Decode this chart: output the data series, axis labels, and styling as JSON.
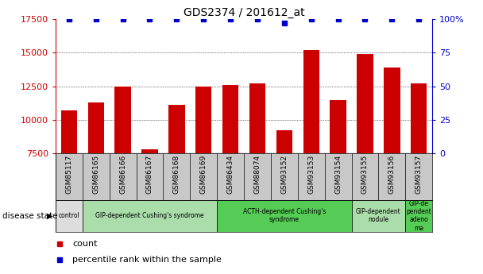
{
  "title": "GDS2374 / 201612_at",
  "samples": [
    "GSM85117",
    "GSM86165",
    "GSM86166",
    "GSM86167",
    "GSM86168",
    "GSM86169",
    "GSM86434",
    "GSM88074",
    "GSM93152",
    "GSM93153",
    "GSM93154",
    "GSM93155",
    "GSM93156",
    "GSM93157"
  ],
  "counts": [
    10700,
    11300,
    12500,
    7800,
    11100,
    12500,
    12600,
    12700,
    9200,
    15200,
    11500,
    14900,
    13900,
    12700
  ],
  "percentiles": [
    100,
    100,
    100,
    100,
    100,
    100,
    100,
    100,
    97,
    100,
    100,
    100,
    100,
    100
  ],
  "ylim_left": [
    7500,
    17500
  ],
  "ylim_right": [
    0,
    100
  ],
  "bar_color": "#cc0000",
  "dot_color": "#0000cc",
  "bg_color": "#ffffff",
  "tick_color_left": "#cc0000",
  "tick_color_right": "#0000cc",
  "yticks_left": [
    7500,
    10000,
    12500,
    15000,
    17500
  ],
  "yticks_right": [
    0,
    25,
    50,
    75,
    100
  ],
  "disease_groups": [
    {
      "label": "control",
      "start": 0,
      "end": 1,
      "color": "#dddddd"
    },
    {
      "label": "GIP-dependent Cushing's syndrome",
      "start": 1,
      "end": 6,
      "color": "#aaddaa"
    },
    {
      "label": "ACTH-dependent Cushing's\nsyndrome",
      "start": 6,
      "end": 11,
      "color": "#55cc55"
    },
    {
      "label": "GIP-dependent\nnodule",
      "start": 11,
      "end": 13,
      "color": "#aaddaa"
    },
    {
      "label": "GIP-de\npendent\nadeno\nma",
      "start": 13,
      "end": 14,
      "color": "#55cc55"
    }
  ],
  "legend_count_label": "count",
  "legend_pct_label": "percentile rank within the sample",
  "label_disease_state": "disease state",
  "bar_width": 0.6,
  "xticklabel_bg": "#c8c8c8",
  "dot_markersize": 4
}
